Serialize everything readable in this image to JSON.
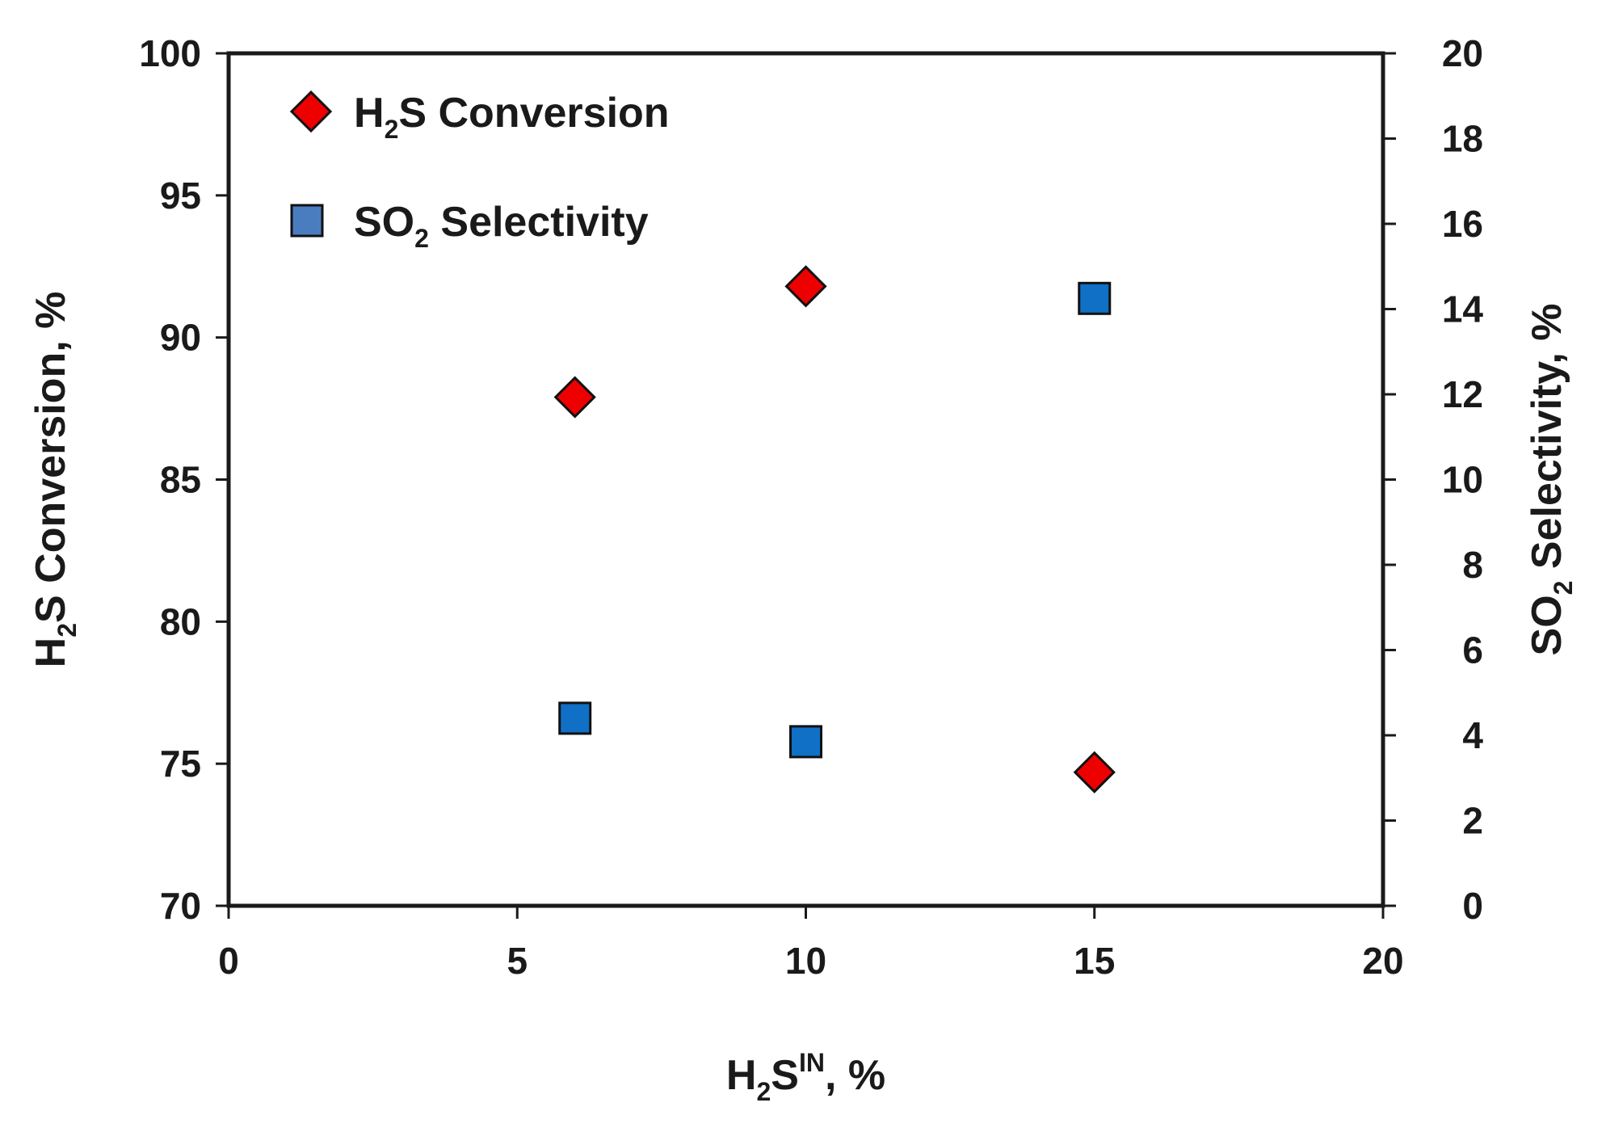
{
  "chart_data": {
    "type": "scatter",
    "x_axis": {
      "label": {
        "main": "H",
        "sub": "2",
        "mid": "S",
        "sup": "IN",
        "tail": ", %"
      },
      "min": 0,
      "max": 20,
      "ticks": [
        0,
        5,
        10,
        15,
        20
      ]
    },
    "y_left": {
      "label": {
        "main": "H",
        "sub": "2",
        "tail": "S Conversion, %"
      },
      "min": 70,
      "max": 100,
      "ticks": [
        70,
        75,
        80,
        85,
        90,
        95,
        100
      ]
    },
    "y_right": {
      "label": {
        "main": "SO",
        "sub": "2",
        "tail": " Selectivity, %"
      },
      "min": 0,
      "max": 20,
      "ticks": [
        0,
        2,
        4,
        6,
        8,
        10,
        12,
        14,
        16,
        18,
        20
      ]
    },
    "series": [
      {
        "name": {
          "main": "H",
          "sub": "2",
          "tail": "S Conversion"
        },
        "axis": "left",
        "marker": "diamond",
        "color": "#ee0000",
        "points": [
          {
            "x": 6,
            "y": 87.9
          },
          {
            "x": 10,
            "y": 91.8
          },
          {
            "x": 15,
            "y": 74.7
          }
        ]
      },
      {
        "name": {
          "main": "SO",
          "sub": "2",
          "tail": " Selectivity"
        },
        "axis": "right",
        "marker": "square",
        "color": "#0f70c6",
        "points": [
          {
            "x": 6,
            "y": 4.4
          },
          {
            "x": 10,
            "y": 3.85
          },
          {
            "x": 15,
            "y": 14.25
          }
        ]
      }
    ],
    "grid": false,
    "legend_position": "top-left"
  }
}
